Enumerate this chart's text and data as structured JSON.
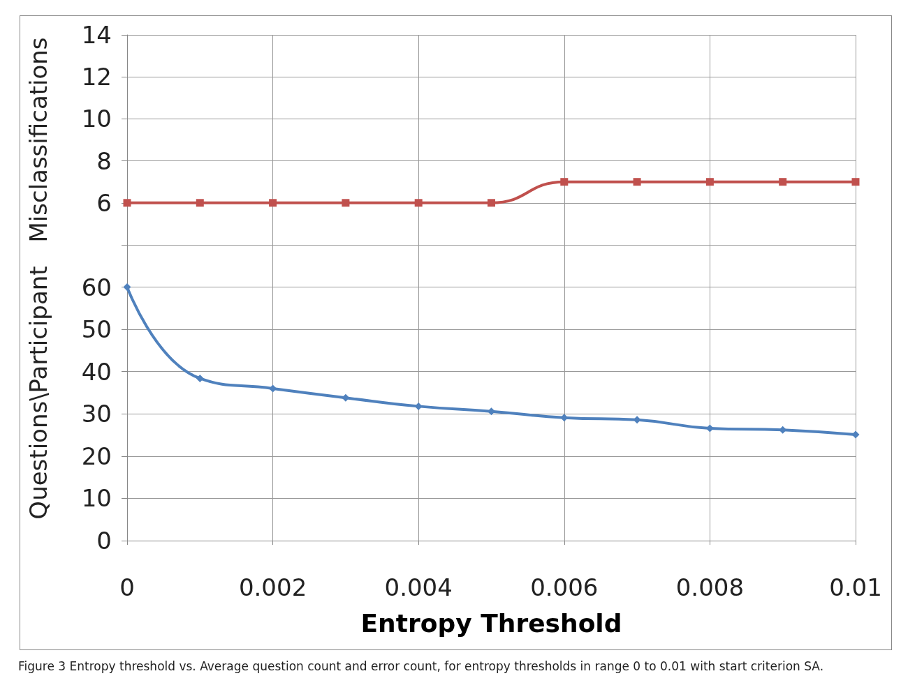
{
  "chart_data": [
    {
      "type": "line",
      "ylabel": "Misclassifications",
      "x": [
        0,
        0.001,
        0.002,
        0.003,
        0.004,
        0.005,
        0.006,
        0.007,
        0.008,
        0.009,
        0.01
      ],
      "series": [
        {
          "color": "#c0504d",
          "values": [
            6,
            6,
            6,
            6,
            6,
            6,
            7,
            7,
            7,
            7,
            7
          ]
        }
      ],
      "xlim": [
        0,
        0.01
      ],
      "xticks": [
        0,
        0.002,
        0.004,
        0.006,
        0.008,
        0.01
      ],
      "ylim": [
        4,
        14
      ],
      "yticks": [
        6,
        8,
        10,
        12,
        14
      ],
      "tick_labels": "y",
      "grid": true,
      "marker": "square",
      "line_style": "solid"
    },
    {
      "type": "line",
      "ylabel": "Questions\\Participant",
      "xlabel": "Entropy Threshold",
      "x": [
        0,
        0.001,
        0.002,
        0.003,
        0.004,
        0.005,
        0.006,
        0.007,
        0.008,
        0.009,
        0.01
      ],
      "series": [
        {
          "color": "#4f81bd",
          "values": [
            60,
            38.4,
            36,
            33.8,
            31.8,
            30.6,
            29.1,
            28.6,
            26.6,
            26.2,
            25.1
          ]
        }
      ],
      "xlim": [
        0,
        0.01
      ],
      "xticks": [
        0,
        0.002,
        0.004,
        0.006,
        0.008,
        0.01
      ],
      "ylim": [
        0,
        70
      ],
      "yticks": [
        0,
        10,
        20,
        30,
        40,
        50,
        60
      ],
      "grid": true,
      "marker": "diamond",
      "line_style": "solid",
      "annotations": [
        "Figure 3 Entropy threshold vs. Average question count and error count, for entropy thresholds in range 0 to 0.01 with start criterion SA."
      ]
    }
  ]
}
